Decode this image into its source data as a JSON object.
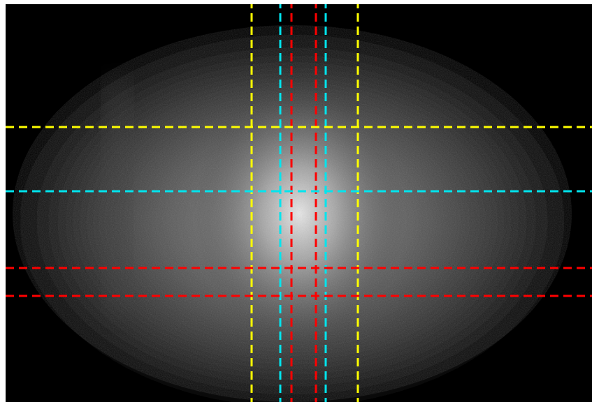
{
  "image": {
    "description_colors": {
      "background": "#000000",
      "frame": "#ffffff",
      "glow_core": "#e6e6e6",
      "glow_mid": "#7a7a7a"
    },
    "guide_lines": [
      {
        "orientation": "vertical",
        "color": "#ffff00",
        "style": "dashed"
      },
      {
        "orientation": "vertical",
        "color": "#00e5ee",
        "style": "dashed"
      },
      {
        "orientation": "vertical",
        "color": "#ff0000",
        "style": "dashed"
      },
      {
        "orientation": "vertical",
        "color": "#ff0000",
        "style": "dashed"
      },
      {
        "orientation": "vertical",
        "color": "#00e5ee",
        "style": "dashed"
      },
      {
        "orientation": "vertical",
        "color": "#ffff00",
        "style": "dashed"
      },
      {
        "orientation": "horizontal",
        "color": "#ffff00",
        "style": "dashed"
      },
      {
        "orientation": "horizontal",
        "color": "#00e5ee",
        "style": "dashed"
      },
      {
        "orientation": "horizontal",
        "color": "#ff0000",
        "style": "dashed"
      },
      {
        "orientation": "horizontal",
        "color": "#ff0000",
        "style": "dashed"
      }
    ]
  }
}
